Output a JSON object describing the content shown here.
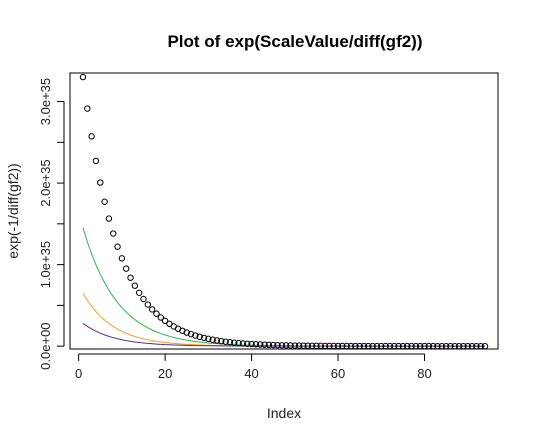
{
  "chart_data": {
    "type": "scatter",
    "title": "Plot of exp(ScaleValue/diff(gf2))",
    "xlabel": "Index",
    "ylabel": "exp(-1/diff(gf2))",
    "xlim": [
      -2,
      97
    ],
    "ylim": [
      -3.5e+33,
      3.35e+35
    ],
    "x_ticks": [
      0,
      20,
      40,
      60,
      80
    ],
    "x_tick_labels": [
      "0",
      "20",
      "40",
      "60",
      "80"
    ],
    "y_ticks": [
      0,
      5e+34,
      1e+35,
      1.5e+35,
      2e+35,
      2.5e+35,
      3e+35
    ],
    "y_tick_labels": [
      "0.0e+00",
      "",
      "1.0e+35",
      "",
      "2.0e+35",
      "",
      "3.0e+35"
    ],
    "grid": false,
    "legend": "none",
    "points": {
      "marker": "open-circle",
      "color": "#000000",
      "x_start": 1,
      "x_end": 94,
      "y_first": 3.3e+35,
      "decay_ratio": 0.883
    },
    "lines": [
      {
        "color": "#2db84d",
        "x_start": 1,
        "x_end": 94,
        "y_first": 1.45e+35,
        "decay_ratio": 0.883
      },
      {
        "color": "#f0a01e",
        "x_start": 1,
        "x_end": 94,
        "y_first": 6.5e+34,
        "decay_ratio": 0.868
      },
      {
        "color": "#5a2d9c",
        "x_start": 1,
        "x_end": 94,
        "y_first": 2.8e+34,
        "decay_ratio": 0.868
      }
    ]
  }
}
